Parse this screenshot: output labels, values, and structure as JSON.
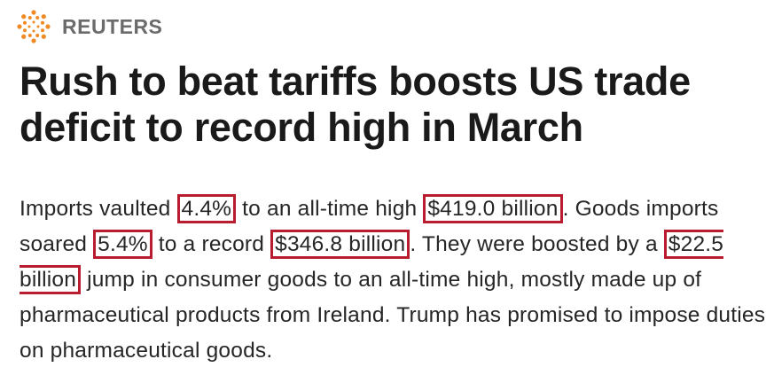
{
  "header": {
    "brand": "REUTERS"
  },
  "article": {
    "headline": "Rush to beat tariffs boosts US trade deficit to record high in March",
    "paragraph": [
      {
        "text": "Imports vaulted ",
        "highlighted": false
      },
      {
        "text": "4.4%",
        "highlighted": true
      },
      {
        "text": " to an all-time high ",
        "highlighted": false
      },
      {
        "text": "$419.0 billion",
        "highlighted": true
      },
      {
        "text": ". Goods imports soared ",
        "highlighted": false
      },
      {
        "text": "5.4%",
        "highlighted": true
      },
      {
        "text": " to a record ",
        "highlighted": false
      },
      {
        "text": "$346.8 billion",
        "highlighted": true
      },
      {
        "text": ". They were boosted by a ",
        "highlighted": false
      },
      {
        "text": "$22.5 billion",
        "highlighted": true
      },
      {
        "text": " jump in consumer goods to an all-time high, mostly made up of pharmaceutical products from Ireland. Trump has promised to impose duties on pharmaceutical goods.",
        "highlighted": false
      }
    ]
  }
}
